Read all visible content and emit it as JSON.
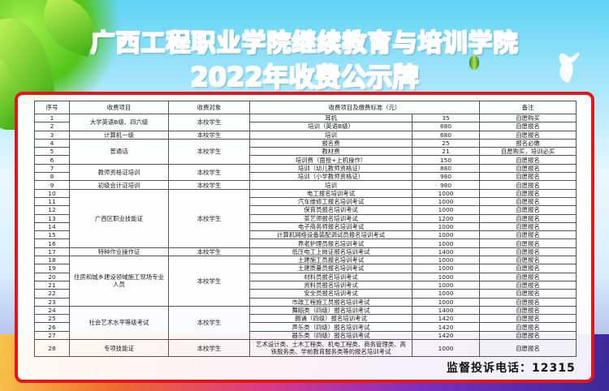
{
  "header": {
    "title_line1": "广西工程职业学院继续教育与培训学院",
    "title_line2": "2022年收费公示牌"
  },
  "table": {
    "columns": [
      "序号",
      "收费项目",
      "收费对象",
      "收费项目及缴费标准（元）",
      "备注"
    ],
    "groups": [
      {
        "item": "大学英语B级、四六级",
        "target": "本校学生",
        "rows": [
          {
            "seq": "1",
            "fee_item": "耳机",
            "amount": "35",
            "remark": "自愿购买"
          },
          {
            "seq": "2",
            "fee_item": "培训（英语B级）",
            "amount": "680",
            "remark": "自愿报名"
          }
        ]
      },
      {
        "item": "计算机一级",
        "target": "本校学生",
        "rows": [
          {
            "seq": "3",
            "fee_item": "培训",
            "amount": "680",
            "remark": "自愿报名"
          }
        ]
      },
      {
        "item": "普通话",
        "target": "本校学生",
        "rows": [
          {
            "seq": "4",
            "fee_item": "报名费",
            "amount": "25",
            "remark": "报名必缴"
          },
          {
            "seq": "5",
            "fee_item": "教材费",
            "amount": "21",
            "remark": "自愿购买，培训必买"
          },
          {
            "seq": "6",
            "fee_item": "培训费（面授+上机操作）",
            "amount": "150",
            "remark": "自愿报名"
          }
        ]
      },
      {
        "item": "教师资格证培训",
        "target": "本校学生",
        "rows": [
          {
            "seq": "7",
            "fee_item": "培训（幼儿教师资格证）",
            "amount": "880",
            "remark": "自愿报名"
          },
          {
            "seq": "8",
            "fee_item": "培训（小学教师资格证）",
            "amount": "980",
            "remark": "自愿报名"
          }
        ]
      },
      {
        "item": "初级会计证培训",
        "target": "本校学生",
        "rows": [
          {
            "seq": "9",
            "fee_item": "培训",
            "amount": "980",
            "remark": "自愿报名"
          }
        ]
      },
      {
        "item": "广西区职业技能证",
        "target": "本校学生",
        "rows": [
          {
            "seq": "10",
            "fee_item": "电工报名培训考试",
            "amount": "1000",
            "remark": "自愿报名"
          },
          {
            "seq": "11",
            "fee_item": "汽车维修工报名培训考试",
            "amount": "1000",
            "remark": "自愿报名"
          },
          {
            "seq": "12",
            "fee_item": "保育员报名培训考试",
            "amount": "1000",
            "remark": "自愿报名"
          },
          {
            "seq": "13",
            "fee_item": "茶艺师报名培训考试",
            "amount": "1200",
            "remark": "自愿报名"
          },
          {
            "seq": "14",
            "fee_item": "电子商务师报名培训考试",
            "amount": "1000",
            "remark": "自愿报名"
          },
          {
            "seq": "15",
            "fee_item": "计算机网络设备装配调试员报名培训考试",
            "amount": "1000",
            "remark": "自愿报名"
          },
          {
            "seq": "16",
            "fee_item": "养老护理员报名培训考试",
            "amount": "1000",
            "remark": "自愿报名"
          }
        ]
      },
      {
        "item": "特种作业操作证",
        "target": "本校学生",
        "rows": [
          {
            "seq": "17",
            "fee_item": "低压电工上岗证报名培训考试",
            "amount": "1400",
            "remark": "自愿报名"
          }
        ]
      },
      {
        "item": "住房和城乡建设领域施工现场专业人员",
        "target": "本校学生",
        "rows": [
          {
            "seq": "18",
            "fee_item": "土建施工员报名培训考试",
            "amount": "1000",
            "remark": "自愿报名"
          },
          {
            "seq": "19",
            "fee_item": "土建质量员报名培训考试",
            "amount": "1000",
            "remark": "自愿报名"
          },
          {
            "seq": "20",
            "fee_item": "材料员报名培训考试",
            "amount": "1000",
            "remark": "自愿报名"
          },
          {
            "seq": "21",
            "fee_item": "资料员报名培训考试",
            "amount": "1000",
            "remark": "自愿报名"
          },
          {
            "seq": "22",
            "fee_item": "安全员报名培训考试",
            "amount": "1000",
            "remark": "自愿报名"
          },
          {
            "seq": "23",
            "fee_item": "市政工程施工员报名培训考试",
            "amount": "1000",
            "remark": "自愿报名"
          }
        ]
      },
      {
        "item": "社会艺术水平等级考试",
        "target": "本校学生",
        "rows": [
          {
            "seq": "24",
            "fee_item": "舞蹈类（四级）报名培训考试",
            "amount": "1400",
            "remark": "自愿报名"
          },
          {
            "seq": "25",
            "fee_item": "朗诵（四级）报名培训考试",
            "amount": "1420",
            "remark": "自愿报名"
          },
          {
            "seq": "26",
            "fee_item": "声乐类（四级）报名培训考试",
            "amount": "1420",
            "remark": "自愿报名"
          },
          {
            "seq": "27",
            "fee_item": "器乐类（四级）报名培训考试",
            "amount": "1420",
            "remark": "自愿报名"
          }
        ]
      },
      {
        "item": "专项技能证",
        "target": "本校学生",
        "rows": [
          {
            "seq": "28",
            "fee_item": "艺术设计类、土木工程类、机电工程类、商务管理类、高铁服务类、学前教育服务类等的报名培训考试",
            "amount": "1000",
            "remark": "自愿报名"
          }
        ]
      }
    ]
  },
  "footer": {
    "hotline": "监督投诉电话：12315"
  },
  "colors": {
    "frame": "#e8141b",
    "title_start": "#e8231c",
    "title_end": "#3b2596"
  }
}
